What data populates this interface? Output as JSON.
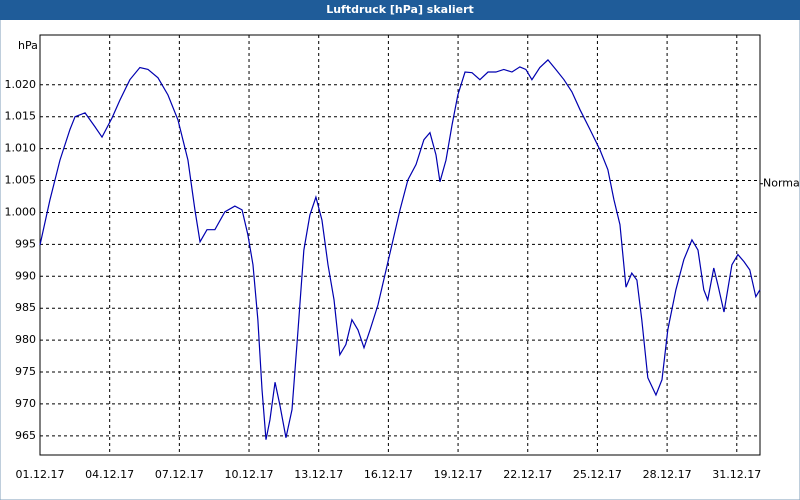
{
  "chart_data": {
    "type": "line",
    "title": "Luftdruck [hPa] skaliert",
    "y_label": "hPa",
    "x": [
      0,
      0.43,
      0.86,
      1.29,
      1.51,
      1.94,
      2.37,
      2.67,
      3.1,
      3.44,
      3.87,
      4.3,
      4.65,
      5.08,
      5.51,
      5.94,
      6.37,
      6.67,
      6.89,
      7.19,
      7.53,
      7.96,
      8.39,
      8.7,
      8.95,
      9.17,
      9.38,
      9.56,
      9.73,
      9.9,
      10.12,
      10.33,
      10.59,
      10.85,
      11.11,
      11.36,
      11.62,
      11.88,
      12.14,
      12.4,
      12.66,
      12.91,
      13.17,
      13.43,
      13.69,
      13.95,
      14.21,
      14.55,
      14.85,
      15.15,
      15.5,
      15.84,
      16.19,
      16.53,
      16.79,
      17.05,
      17.22,
      17.48,
      17.74,
      17.99,
      18.3,
      18.6,
      18.94,
      19.29,
      19.63,
      19.97,
      20.32,
      20.66,
      20.92,
      21.18,
      21.52,
      21.87,
      22.21,
      22.56,
      22.9,
      23.25,
      23.68,
      24.11,
      24.45,
      24.71,
      24.97,
      25.23,
      25.48,
      25.7,
      25.91,
      26.17,
      26.52,
      26.78,
      27.03,
      27.38,
      27.72,
      28.07,
      28.33,
      28.58,
      28.75,
      29.01,
      29.19,
      29.45,
      29.79,
      30.05,
      30.31,
      30.56,
      30.82,
      31.0
    ],
    "series": [
      {
        "name": "Luftdruck",
        "color": "#0000b0",
        "values": [
          994.9,
          1002,
          1008.2,
          1013,
          1015,
          1015.6,
          1013.4,
          1011.8,
          1014.8,
          1017.6,
          1020.8,
          1022.7,
          1022.4,
          1021.1,
          1018.4,
          1014.5,
          1008.2,
          1000.4,
          995.4,
          997.3,
          997.3,
          1000.1,
          1001,
          1000.4,
          996.5,
          991.8,
          983.2,
          972.2,
          964.4,
          967.5,
          973.4,
          969.8,
          964.7,
          969.1,
          981.6,
          994.1,
          999.6,
          1002.4,
          998.8,
          991.8,
          986.3,
          977.7,
          979.3,
          983.2,
          981.6,
          978.8,
          981.6,
          985.5,
          990.2,
          994.9,
          1000.4,
          1005.1,
          1007.5,
          1011.4,
          1012.5,
          1009,
          1004.8,
          1008.2,
          1013.7,
          1018.4,
          1022,
          1021.9,
          1020.8,
          1022,
          1022,
          1022.4,
          1022,
          1022.8,
          1022.4,
          1020.8,
          1022.7,
          1023.9,
          1022.4,
          1020.8,
          1018.9,
          1016.1,
          1013,
          1009.8,
          1006.7,
          1002,
          998.1,
          988.3,
          990.5,
          989.4,
          983.2,
          974.1,
          971.4,
          973.8,
          981.6,
          987.9,
          992.6,
          995.7,
          994.1,
          987.9,
          986.3,
          991.3,
          988.6,
          984.4,
          991.8,
          993.4,
          992.3,
          991,
          986.8,
          987.9
        ]
      }
    ],
    "xlim": [
      0,
      31
    ],
    "xticks": [
      {
        "value": 0,
        "label": "01.12.17"
      },
      {
        "value": 3,
        "label": "04.12.17"
      },
      {
        "value": 6,
        "label": "07.12.17"
      },
      {
        "value": 9,
        "label": "10.12.17"
      },
      {
        "value": 12,
        "label": "13.12.17"
      },
      {
        "value": 15,
        "label": "16.12.17"
      },
      {
        "value": 18,
        "label": "19.12.17"
      },
      {
        "value": 21,
        "label": "22.12.17"
      },
      {
        "value": 24,
        "label": "25.12.17"
      },
      {
        "value": 27,
        "label": "28.12.17"
      },
      {
        "value": 30,
        "label": "31.12.17"
      }
    ],
    "ylim": [
      962,
      1027.8
    ],
    "yticks": [
      965,
      970,
      975,
      980,
      985,
      990,
      995,
      {
        "value": 1000,
        "label": "1.000"
      },
      {
        "value": 1005,
        "label": "1.005"
      },
      {
        "value": 1010,
        "label": "1.010"
      },
      {
        "value": 1015,
        "label": "1.015"
      },
      {
        "value": 1020,
        "label": "1.020"
      }
    ],
    "grid": true,
    "normal_line": {
      "label": "Normal",
      "value": 1004.5
    }
  }
}
